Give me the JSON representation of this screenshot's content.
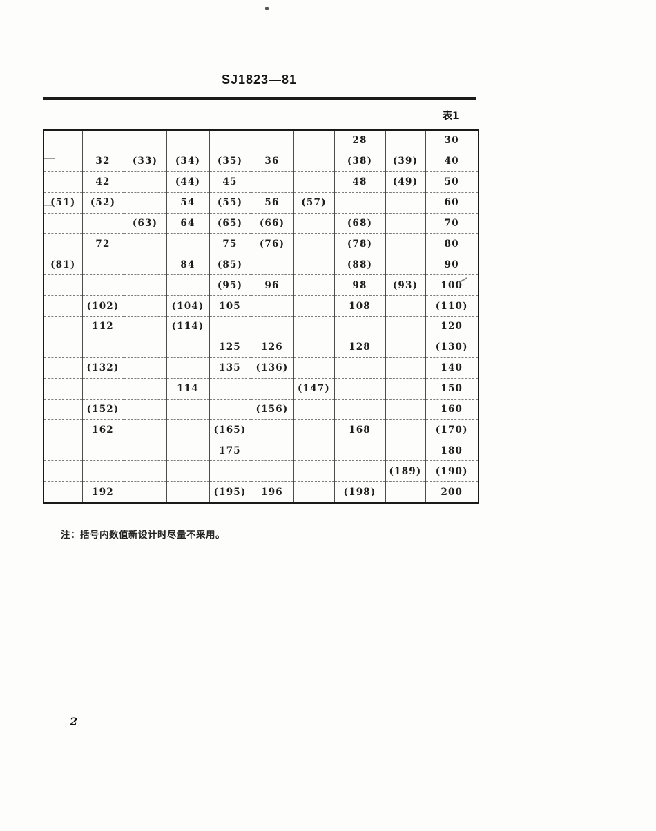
{
  "page": {
    "title": "SJ1823—81",
    "table_label": "表1",
    "note": "注：括号内数值新设计时尽量不采用。",
    "page_number": "2"
  },
  "table": {
    "description": "preferred-number-values-grid",
    "columns": 10,
    "rows": [
      [
        "",
        "",
        "",
        "",
        "",
        "",
        "",
        "28",
        "",
        "30"
      ],
      [
        "",
        "32",
        "(33)",
        "(34)",
        "(35)",
        "36",
        "",
        "(38)",
        "(39)",
        "40"
      ],
      [
        "",
        "42",
        "",
        "(44)",
        "45",
        "",
        "",
        "48",
        "(49)",
        "50"
      ],
      [
        "(51)",
        "(52)",
        "",
        "54",
        "(55)",
        "56",
        "(57)",
        "",
        "",
        "60"
      ],
      [
        "",
        "",
        "(63)",
        "64",
        "(65)",
        "(66)",
        "",
        "(68)",
        "",
        "70"
      ],
      [
        "",
        "72",
        "",
        "",
        "75",
        "(76)",
        "",
        "(78)",
        "",
        "80"
      ],
      [
        "(81)",
        "",
        "",
        "84",
        "(85)",
        "",
        "",
        "(88)",
        "",
        "90"
      ],
      [
        "",
        "",
        "",
        "",
        "(95)",
        "96",
        "",
        "98",
        "(93)",
        "100"
      ],
      [
        "",
        "(102)",
        "",
        "(104)",
        "105",
        "",
        "",
        "108",
        "",
        "(110)"
      ],
      [
        "",
        "112",
        "",
        "(114)",
        "",
        "",
        "",
        "",
        "",
        "120"
      ],
      [
        "",
        "",
        "",
        "",
        "125",
        "126",
        "",
        "128",
        "",
        "(130)"
      ],
      [
        "",
        "(132)",
        "",
        "",
        "135",
        "(136)",
        "",
        "",
        "",
        "140"
      ],
      [
        "",
        "",
        "",
        "114",
        "",
        "",
        "(147)",
        "",
        "",
        "150"
      ],
      [
        "",
        "(152)",
        "",
        "",
        "",
        "(156)",
        "",
        "",
        "",
        "160"
      ],
      [
        "",
        "162",
        "",
        "",
        "(165)",
        "",
        "",
        "168",
        "",
        "(170)"
      ],
      [
        "",
        "",
        "",
        "",
        "175",
        "",
        "",
        "",
        "",
        "180"
      ],
      [
        "",
        "",
        "",
        "",
        "",
        "",
        "",
        "",
        "(189)",
        "(190)"
      ],
      [
        "",
        "192",
        "",
        "",
        "(195)",
        "196",
        "",
        "(198)",
        "",
        "200"
      ]
    ]
  }
}
